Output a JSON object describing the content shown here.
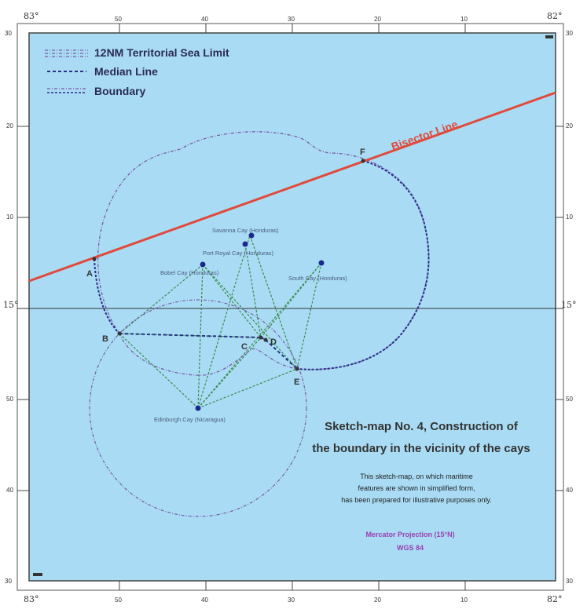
{
  "corners": {
    "west": "83°",
    "east": "82°",
    "north_lat": "30",
    "south_lat": "30",
    "mid_lat": "15°"
  },
  "top_ticks": [
    "50",
    "40",
    "30",
    "20",
    "10"
  ],
  "bottom_ticks": [
    "50",
    "40",
    "30",
    "20",
    "10"
  ],
  "left_ticks": [
    "20",
    "10",
    "50",
    "40"
  ],
  "right_ticks": [
    "20",
    "10",
    "50",
    "40"
  ],
  "legend": {
    "territorial_sea": "12NM Territorial Sea Limit",
    "median_line": "Median Line",
    "boundary": "Boundary"
  },
  "bisector_label": "Bisector Line",
  "points": {
    "A": "A",
    "B": "B",
    "C": "C",
    "D": "D",
    "E": "E",
    "F": "F"
  },
  "cays": {
    "savanna": "Savanna Cay (Honduras)",
    "port_royal": "Port Royal Cay (Honduras)",
    "bobel": "Bobel Cay (Honduras)",
    "south": "South Cay (Honduras)",
    "edinburgh": "Edinburgh Cay (Nicaragua)"
  },
  "title_line1": "Sketch-map No. 4, Construction of",
  "title_line2": "the boundary in the vicinity of the cays",
  "note_line1": "This sketch-map, on which maritime",
  "note_line2": "features are shown in simplified form,",
  "note_line3": "has been prepared for illustrative purposes only.",
  "projection": "Mercator Projection (15°N)",
  "datum": "WGS 84",
  "colors": {
    "sea": "#a9dcf4",
    "bisector": "#e04a3c",
    "territorial": "#7b5aa6",
    "median": "#2a2f8a",
    "construction": "#3a8a4a",
    "cay": "#1b2a8a",
    "projection_text": "#9a3fb0"
  }
}
